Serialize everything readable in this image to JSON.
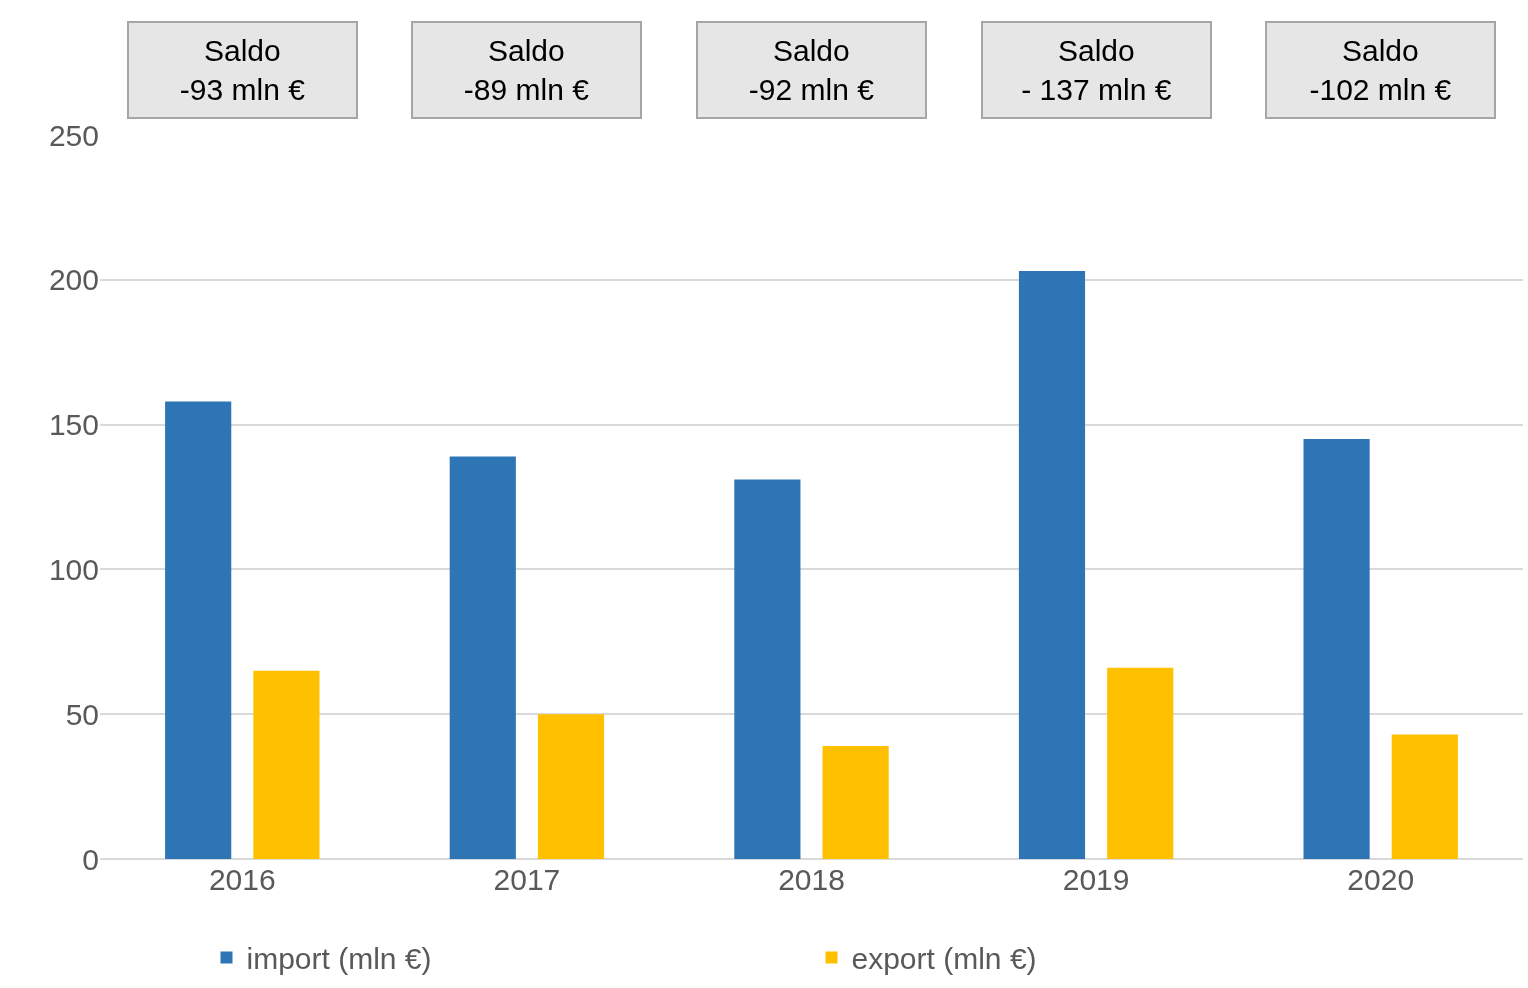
{
  "chart_data": {
    "type": "bar",
    "categories": [
      "2016",
      "2017",
      "2018",
      "2019",
      "2020"
    ],
    "series": [
      {
        "name": "import (mln €)",
        "color": "#2e75b6",
        "values": [
          158,
          139,
          131,
          203,
          145
        ]
      },
      {
        "name": "export (mln €)",
        "color": "#ffc000",
        "values": [
          65,
          50,
          39,
          66,
          43
        ]
      }
    ],
    "ylim": [
      0,
      250
    ],
    "yticks": [
      0,
      50,
      100,
      150,
      200,
      250
    ],
    "grid": "y",
    "legend": "bottom",
    "annotations": [
      "Saldo\n-93 mln €",
      "Saldo\n-89 mln €",
      "Saldo\n-92 mln €",
      "Saldo\n- 137 mln €",
      "Saldo\n-102 mln €"
    ]
  }
}
